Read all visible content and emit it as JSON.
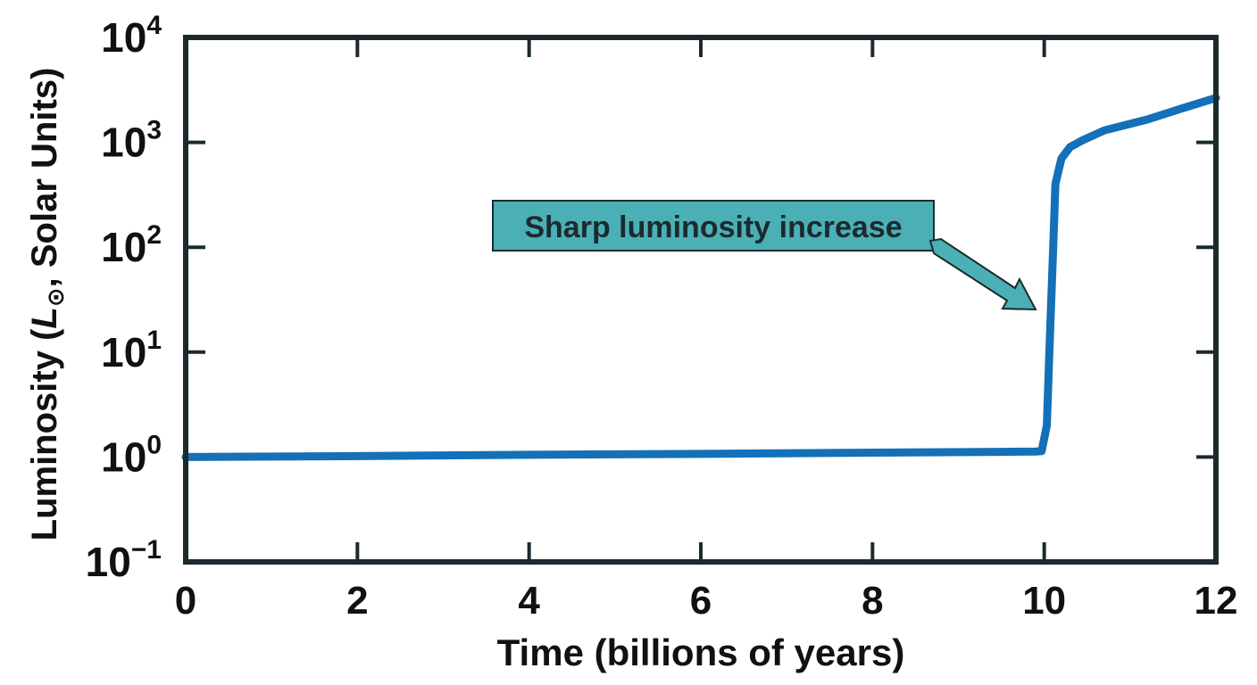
{
  "chart_data": {
    "type": "line",
    "title": "",
    "xlabel": "Time (billions of years)",
    "ylabel": {
      "prefix": "Luminosity (",
      "symbol": "L",
      "subscript": "⊙",
      "suffix": ", Solar Units)"
    },
    "x_ticks": [
      0,
      2,
      4,
      6,
      8,
      10,
      12
    ],
    "y_ticks": [
      {
        "value": 0.1,
        "base": "10",
        "exp": "−1"
      },
      {
        "value": 1,
        "base": "10",
        "exp": "0"
      },
      {
        "value": 10,
        "base": "10",
        "exp": "1"
      },
      {
        "value": 100,
        "base": "10",
        "exp": "2"
      },
      {
        "value": 1000,
        "base": "10",
        "exp": "3"
      },
      {
        "value": 10000,
        "base": "10",
        "exp": "4"
      }
    ],
    "xlim": [
      0,
      12
    ],
    "ylim": [
      0.1,
      10000
    ],
    "y_scale": "log",
    "grid": false,
    "series": [
      {
        "color": "#1470b8",
        "points": [
          [
            0,
            1.0
          ],
          [
            2,
            1.02
          ],
          [
            4,
            1.05
          ],
          [
            6,
            1.07
          ],
          [
            8,
            1.1
          ],
          [
            9.5,
            1.12
          ],
          [
            9.9,
            1.13
          ],
          [
            9.97,
            1.14
          ],
          [
            10.03,
            2
          ],
          [
            10.06,
            10
          ],
          [
            10.1,
            80
          ],
          [
            10.13,
            400
          ],
          [
            10.2,
            700
          ],
          [
            10.3,
            900
          ],
          [
            10.45,
            1050
          ],
          [
            10.7,
            1300
          ],
          [
            11.2,
            1650
          ],
          [
            11.6,
            2100
          ],
          [
            12,
            2650
          ]
        ]
      }
    ],
    "annotations": [
      {
        "text": "Sharp luminosity increase",
        "box_color": "#4ab0b6",
        "points_to": [
          10.0,
          50
        ]
      }
    ]
  }
}
